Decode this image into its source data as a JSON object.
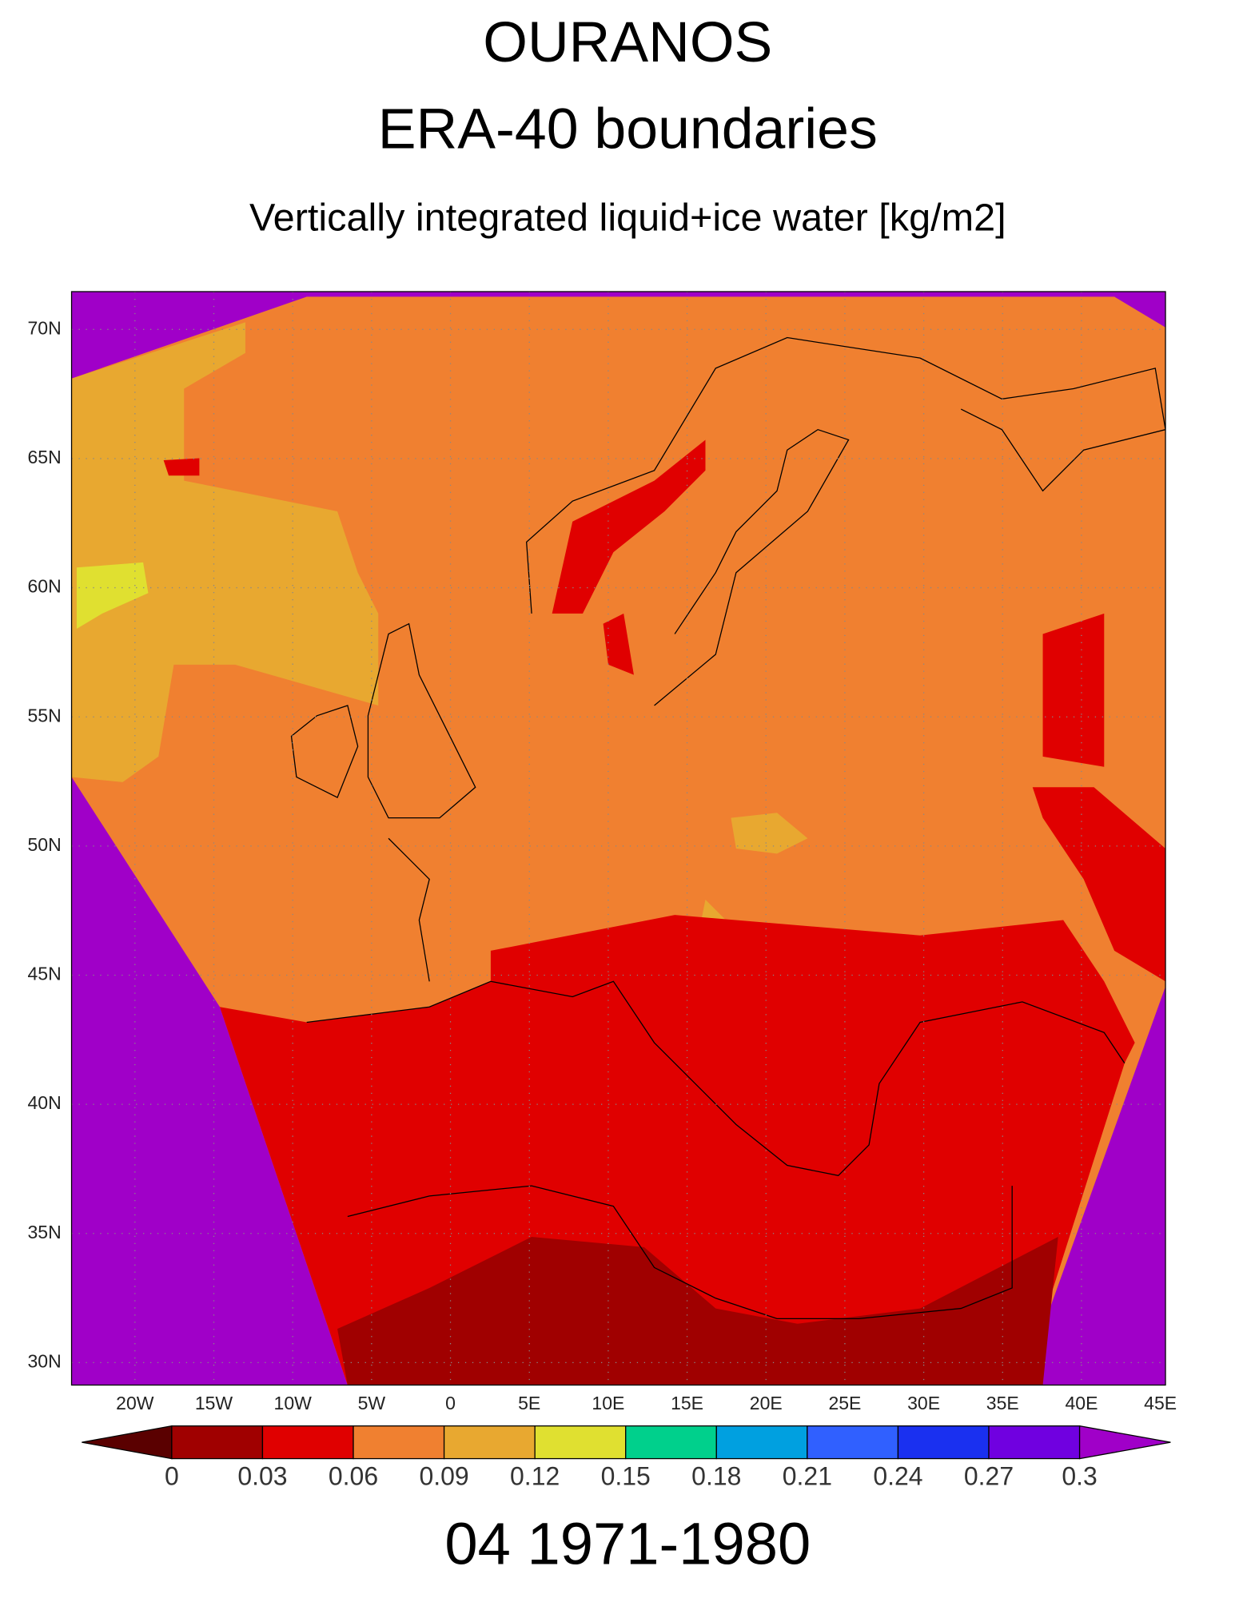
{
  "header": {
    "title": "OURANOS",
    "subtitle": "ERA-40 boundaries",
    "variable": "Vertically integrated liquid+ice water [kg/m2]"
  },
  "map": {
    "lat_labels": [
      "70N",
      "65N",
      "60N",
      "55N",
      "50N",
      "45N",
      "40N",
      "35N",
      "30N"
    ],
    "lon_labels": [
      "20W",
      "15W",
      "10W",
      "5W",
      "0",
      "5E",
      "10E",
      "15E",
      "20E",
      "25E",
      "30E",
      "35E",
      "40E",
      "45E"
    ]
  },
  "colorbar": {
    "levels": [
      0,
      0.03,
      0.06,
      0.09,
      0.12,
      0.15,
      0.18,
      0.21,
      0.24,
      0.27,
      0.3
    ],
    "colors": [
      "#5a0000",
      "#a00000",
      "#e00000",
      "#f08030",
      "#e8a830",
      "#e0e030",
      "#00d08c",
      "#00a0e0",
      "#3060ff",
      "#1a30f0",
      "#7000e0",
      "#a000c8"
    ]
  },
  "footer": {
    "period": "04 1971-1980"
  }
}
